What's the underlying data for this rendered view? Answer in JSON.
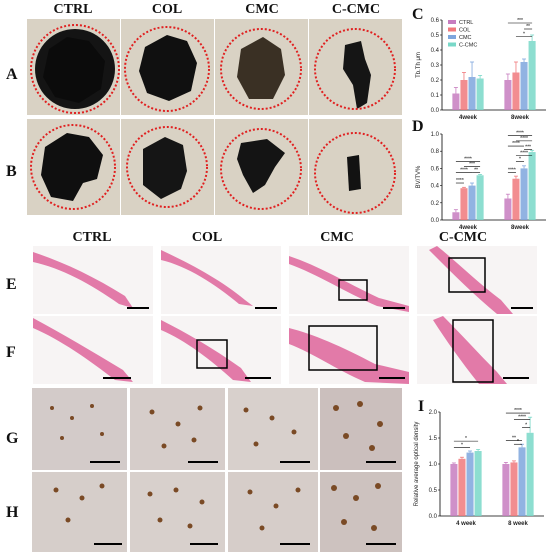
{
  "figure": {
    "columns": [
      "CTRL",
      "COL",
      "CMC",
      "C-CMC"
    ],
    "rows": {
      "A": "A",
      "B": "B",
      "E": "E",
      "F": "F",
      "G": "G",
      "H": "H"
    },
    "panel_letters": {
      "C": "C",
      "D": "D",
      "I": "I"
    },
    "colors": {
      "CTRL": "#c77dbf",
      "COL": "#f0797c",
      "CMC": "#7ea6dd",
      "C-CMC": "#79d8c8",
      "circle": "#e02020",
      "he_tissue": "#e27aa8",
      "ihc_cell": "#7a4a25"
    }
  },
  "chart_data": [
    {
      "id": "C",
      "type": "bar",
      "categories": [
        "4week",
        "8week"
      ],
      "ylabel": "Tb.Th μm",
      "ylim": [
        0,
        0.6
      ],
      "yticks": [
        "0.0",
        "0.1",
        "0.2",
        "0.3",
        "0.4",
        "0.5",
        "0.6"
      ],
      "legend": [
        "CTRL",
        "COL",
        "CMC",
        "C-CMC"
      ],
      "legend_position": "top-left",
      "series": [
        {
          "name": "CTRL",
          "values": [
            0.11,
            0.2
          ],
          "err": [
            0.04,
            0.04
          ]
        },
        {
          "name": "COL",
          "values": [
            0.2,
            0.25
          ],
          "err": [
            0.05,
            0.07
          ]
        },
        {
          "name": "CMC",
          "values": [
            0.22,
            0.32
          ],
          "err": [
            0.1,
            0.02
          ]
        },
        {
          "name": "C-CMC",
          "values": [
            0.21,
            0.46
          ],
          "err": [
            0.02,
            0.04
          ]
        }
      ],
      "significance": [
        "***",
        "**",
        "*"
      ]
    },
    {
      "id": "D",
      "type": "bar",
      "categories": [
        "4week",
        "8week"
      ],
      "ylabel": "BV/TV%",
      "ylim": [
        0,
        1.0
      ],
      "yticks": [
        "0.0",
        "0.2",
        "0.4",
        "0.6",
        "0.8",
        "1.0"
      ],
      "series": [
        {
          "name": "CTRL",
          "values": [
            0.09,
            0.25
          ],
          "err": [
            0.03,
            0.05
          ]
        },
        {
          "name": "COL",
          "values": [
            0.37,
            0.48
          ],
          "err": [
            0.01,
            0.03
          ]
        },
        {
          "name": "CMC",
          "values": [
            0.4,
            0.6
          ],
          "err": [
            0.03,
            0.03
          ]
        },
        {
          "name": "C-CMC",
          "values": [
            0.52,
            0.79
          ],
          "err": [
            0.01,
            0.02
          ]
        }
      ],
      "significance": [
        "****",
        "****",
        "***",
        "****",
        "****",
        "****",
        "****",
        "****",
        "****",
        "**",
        "*",
        "***",
        "****"
      ]
    },
    {
      "id": "I",
      "type": "bar",
      "categories": [
        "4 week",
        "8 week"
      ],
      "ylabel": "Relative average optical density",
      "ylim": [
        0,
        2.0
      ],
      "yticks": [
        "0.0",
        "0.5",
        "1.0",
        "1.5",
        "2.0"
      ],
      "series": [
        {
          "name": "CTRL",
          "values": [
            1.0,
            1.0
          ],
          "err": [
            0.02,
            0.03
          ]
        },
        {
          "name": "COL",
          "values": [
            1.1,
            1.03
          ],
          "err": [
            0.03,
            0.03
          ]
        },
        {
          "name": "CMC",
          "values": [
            1.22,
            1.32
          ],
          "err": [
            0.03,
            0.06
          ]
        },
        {
          "name": "C-CMC",
          "values": [
            1.25,
            1.6
          ],
          "err": [
            0.03,
            0.3
          ]
        }
      ],
      "significance": [
        "*",
        "*",
        "****",
        "****",
        "**",
        "*",
        "*"
      ]
    }
  ]
}
